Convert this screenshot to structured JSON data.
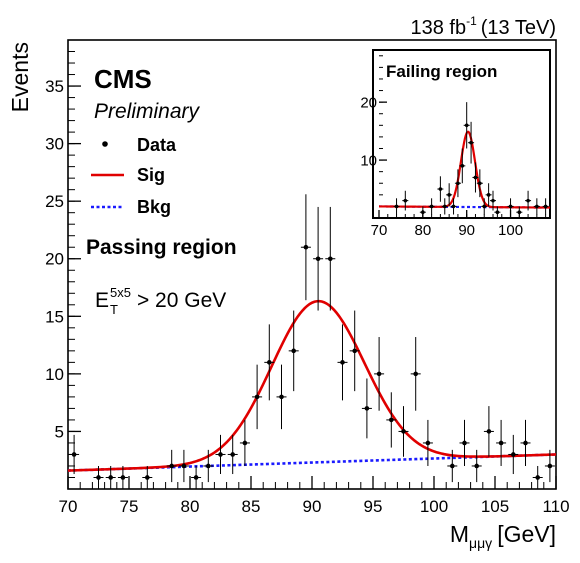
{
  "chart_data": [
    {
      "type": "scatter",
      "panel": "Passing region",
      "lumi_label": "138 fb",
      "lumi_sup": "-1",
      "lumi_energy": "(13 TeV)",
      "cms_label": "CMS",
      "preliminary_label": "Preliminary",
      "region_label": "Passing region",
      "cut_label": {
        "base": "E",
        "sub": "T",
        "sup": "5x5",
        "rest": "> 20 GeV"
      },
      "xlabel": {
        "base": "M",
        "sub": "μμγ",
        "rest": "[GeV]"
      },
      "ylabel": "Events",
      "xlim": [
        70,
        110
      ],
      "ylim": [
        0,
        39
      ],
      "xticks": [
        70,
        75,
        80,
        85,
        90,
        95,
        100,
        105,
        110
      ],
      "yticks": [
        5,
        10,
        15,
        20,
        25,
        30,
        35
      ],
      "legend": [
        {
          "label": "Data",
          "style": "marker"
        },
        {
          "label": "Sig",
          "style": "solid",
          "color": "#e00000"
        },
        {
          "label": "Bkg",
          "style": "dotted",
          "color": "#1a1aff"
        }
      ],
      "data_points": [
        {
          "x": 70.5,
          "y": 3,
          "err": 1.7
        },
        {
          "x": 71.5,
          "y": 0,
          "err": 1.0
        },
        {
          "x": 72.5,
          "y": 1,
          "err": 1.0
        },
        {
          "x": 73.5,
          "y": 1,
          "err": 1.0
        },
        {
          "x": 74.5,
          "y": 1,
          "err": 1.0
        },
        {
          "x": 75.5,
          "y": 0,
          "err": 1.0
        },
        {
          "x": 76.5,
          "y": 1,
          "err": 1.0
        },
        {
          "x": 77.5,
          "y": 0,
          "err": 1.0
        },
        {
          "x": 78.5,
          "y": 2,
          "err": 1.4
        },
        {
          "x": 79.5,
          "y": 2,
          "err": 1.4
        },
        {
          "x": 80.5,
          "y": 1,
          "err": 1.0
        },
        {
          "x": 81.5,
          "y": 2,
          "err": 1.4
        },
        {
          "x": 82.5,
          "y": 3,
          "err": 1.7
        },
        {
          "x": 83.5,
          "y": 3,
          "err": 1.7
        },
        {
          "x": 84.5,
          "y": 4,
          "err": 2.0
        },
        {
          "x": 85.5,
          "y": 8,
          "err": 2.8
        },
        {
          "x": 86.5,
          "y": 11,
          "err": 3.3
        },
        {
          "x": 87.5,
          "y": 8,
          "err": 2.8
        },
        {
          "x": 88.5,
          "y": 12,
          "err": 3.5
        },
        {
          "x": 89.5,
          "y": 21,
          "err": 4.6
        },
        {
          "x": 90.5,
          "y": 20,
          "err": 4.5
        },
        {
          "x": 91.5,
          "y": 20,
          "err": 4.5
        },
        {
          "x": 92.5,
          "y": 11,
          "err": 3.3
        },
        {
          "x": 93.5,
          "y": 12,
          "err": 3.5
        },
        {
          "x": 94.5,
          "y": 7,
          "err": 2.6
        },
        {
          "x": 95.5,
          "y": 10,
          "err": 3.2
        },
        {
          "x": 96.5,
          "y": 6,
          "err": 2.4
        },
        {
          "x": 97.5,
          "y": 5,
          "err": 2.2
        },
        {
          "x": 98.5,
          "y": 10,
          "err": 3.2
        },
        {
          "x": 99.5,
          "y": 4,
          "err": 2.0
        },
        {
          "x": 100.5,
          "y": 0,
          "err": 1.0
        },
        {
          "x": 101.5,
          "y": 2,
          "err": 1.4
        },
        {
          "x": 102.5,
          "y": 4,
          "err": 2.0
        },
        {
          "x": 103.5,
          "y": 2,
          "err": 1.4
        },
        {
          "x": 104.5,
          "y": 5,
          "err": 2.2
        },
        {
          "x": 105.5,
          "y": 4,
          "err": 2.0
        },
        {
          "x": 106.5,
          "y": 3,
          "err": 1.7
        },
        {
          "x": 107.5,
          "y": 4,
          "err": 2.0
        },
        {
          "x": 108.5,
          "y": 1,
          "err": 1.0
        },
        {
          "x": 109.5,
          "y": 2,
          "err": 1.4
        }
      ],
      "sig_curve": {
        "mean": 90.5,
        "sigma": 3.8,
        "amp": 14.0
      },
      "bkg_curve": {
        "y_start": 1.6,
        "y_end": 3.0
      }
    },
    {
      "type": "scatter",
      "panel": "Failing region",
      "region_label": "Failing region",
      "xlim": [
        70,
        109
      ],
      "ylim": [
        0,
        29
      ],
      "xticks": [
        70,
        80,
        90,
        100
      ],
      "yticks": [
        10,
        20
      ],
      "data_points": [
        {
          "x": 72,
          "y": 0,
          "err": 1.0
        },
        {
          "x": 74,
          "y": 2,
          "err": 1.4
        },
        {
          "x": 76,
          "y": 3,
          "err": 1.7
        },
        {
          "x": 78,
          "y": 0,
          "err": 1.0
        },
        {
          "x": 80,
          "y": 1,
          "err": 1.0
        },
        {
          "x": 82,
          "y": 2,
          "err": 1.4
        },
        {
          "x": 84,
          "y": 5,
          "err": 2.2
        },
        {
          "x": 85,
          "y": 2,
          "err": 1.4
        },
        {
          "x": 86,
          "y": 4,
          "err": 2.0
        },
        {
          "x": 87,
          "y": 2,
          "err": 1.4
        },
        {
          "x": 88,
          "y": 6,
          "err": 2.4
        },
        {
          "x": 89,
          "y": 9,
          "err": 3.0
        },
        {
          "x": 90,
          "y": 16,
          "err": 4.0
        },
        {
          "x": 91,
          "y": 13,
          "err": 3.6
        },
        {
          "x": 92,
          "y": 7,
          "err": 2.6
        },
        {
          "x": 93,
          "y": 6,
          "err": 2.4
        },
        {
          "x": 94,
          "y": 2,
          "err": 1.4
        },
        {
          "x": 95,
          "y": 4,
          "err": 2.0
        },
        {
          "x": 96,
          "y": 3,
          "err": 1.7
        },
        {
          "x": 97,
          "y": 1,
          "err": 1.0
        },
        {
          "x": 98,
          "y": 0,
          "err": 1.0
        },
        {
          "x": 100,
          "y": 2,
          "err": 1.4
        },
        {
          "x": 102,
          "y": 1,
          "err": 1.0
        },
        {
          "x": 104,
          "y": 3,
          "err": 1.7
        },
        {
          "x": 106,
          "y": 2,
          "err": 1.4
        },
        {
          "x": 108,
          "y": 2,
          "err": 1.4
        }
      ],
      "sig_curve": {
        "mean": 90.3,
        "sigma": 1.6,
        "amp": 13.0
      },
      "bkg_curve": {
        "y_start": 2.0,
        "y_end": 1.8
      }
    }
  ],
  "colors": {
    "signal": "#e00000",
    "background": "#1a1aff",
    "data": "#000000"
  }
}
